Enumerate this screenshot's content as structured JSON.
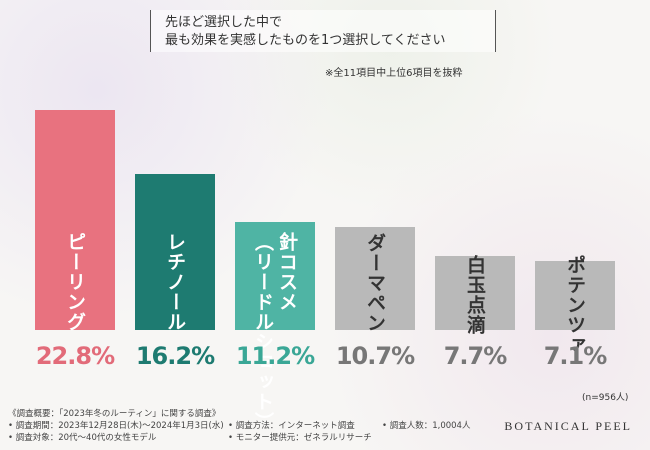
{
  "chart_data": {
    "type": "bar",
    "title": [
      "先ほど選択した中で",
      "最も効果を実感したものを1つ選択してください"
    ],
    "note": "※全11項目中上位6項目を抜粋",
    "sample_size": "(n=956人)",
    "categories": [
      "ピーリング",
      "レチノール",
      "針コスメ\n（リードルショット）",
      "ダーマペン",
      "白玉点滴",
      "ポテンツァ"
    ],
    "values": [
      22.8,
      16.2,
      11.2,
      10.7,
      7.7,
      7.1
    ],
    "value_labels": [
      "22.8%",
      "16.2%",
      "11.2%",
      "10.7%",
      "7.7%",
      "7.1%"
    ],
    "colors": [
      "#e8727f",
      "#1e7b71",
      "#4fb4a4",
      "#b9b9b9",
      "#b9b9b9",
      "#b9b9b9"
    ],
    "label_colors": [
      "#ffffff",
      "#ffffff",
      "#ffffff",
      "#333333",
      "#333333",
      "#333333"
    ],
    "value_label_colors": [
      "#e26b79",
      "#1e7b71",
      "#3aa796",
      "#777777",
      "#777777",
      "#777777"
    ],
    "footer": [
      "《調査概要：「2023年冬のルーティン」に関する調査》",
      "• 調査期間：2023年12月28日(木)～2024年1月3日(水)",
      "• 調査対象：20代～40代の女性モデル",
      "• 調査方法：インターネット調査",
      "• モニター提供元：ゼネラルリサーチ",
      "• 調査人数：1,0004人"
    ],
    "brand": "BOTANICAL PEEL"
  }
}
